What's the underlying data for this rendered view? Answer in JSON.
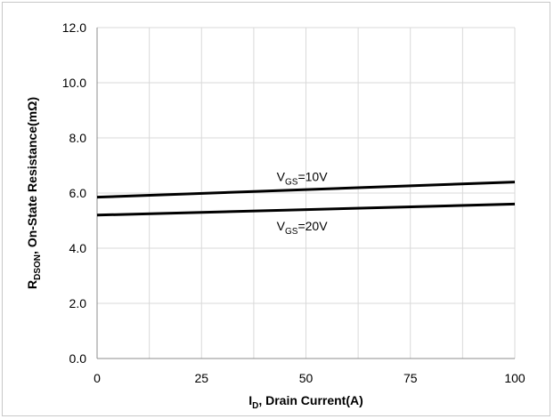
{
  "chart_data": {
    "type": "line",
    "title": "",
    "xlabel": {
      "main": "I",
      "sub": "D",
      "rest": ", Drain Current(A)"
    },
    "ylabel": {
      "main": "R",
      "sub": "DSON",
      "rest": ", On-State Resistance(mΩ)"
    },
    "xlim": [
      0,
      100
    ],
    "ylim": [
      0.0,
      12.0
    ],
    "x_ticks": [
      0,
      25,
      50,
      75,
      100
    ],
    "x_tick_labels": [
      "0",
      "25",
      "50",
      "75",
      "100"
    ],
    "y_ticks": [
      0,
      2,
      4,
      6,
      8,
      10,
      12
    ],
    "y_tick_labels": [
      "0.0",
      "2.0",
      "4.0",
      "6.0",
      "8.0",
      "10.0",
      "12.0"
    ],
    "x_grid": [
      0,
      12.5,
      25,
      37.5,
      50,
      62.5,
      75,
      87.5,
      100
    ],
    "y_grid": [
      0,
      2,
      4,
      6,
      8,
      10,
      12
    ],
    "grid": true,
    "series": [
      {
        "name": "VGS=10V",
        "x": [
          0,
          100
        ],
        "y": [
          5.85,
          6.4
        ],
        "color": "#000000"
      },
      {
        "name": "VGS=20V",
        "x": [
          0,
          100
        ],
        "y": [
          5.2,
          5.6
        ],
        "color": "#000000"
      }
    ],
    "annotations": [
      {
        "series": 0,
        "main": "V",
        "sub": "GS",
        "rest": "=10V",
        "x": 43,
        "y": 6.6
      },
      {
        "series": 1,
        "main": "V",
        "sub": "GS",
        "rest": "=20V",
        "x": 43,
        "y": 4.8
      }
    ]
  }
}
